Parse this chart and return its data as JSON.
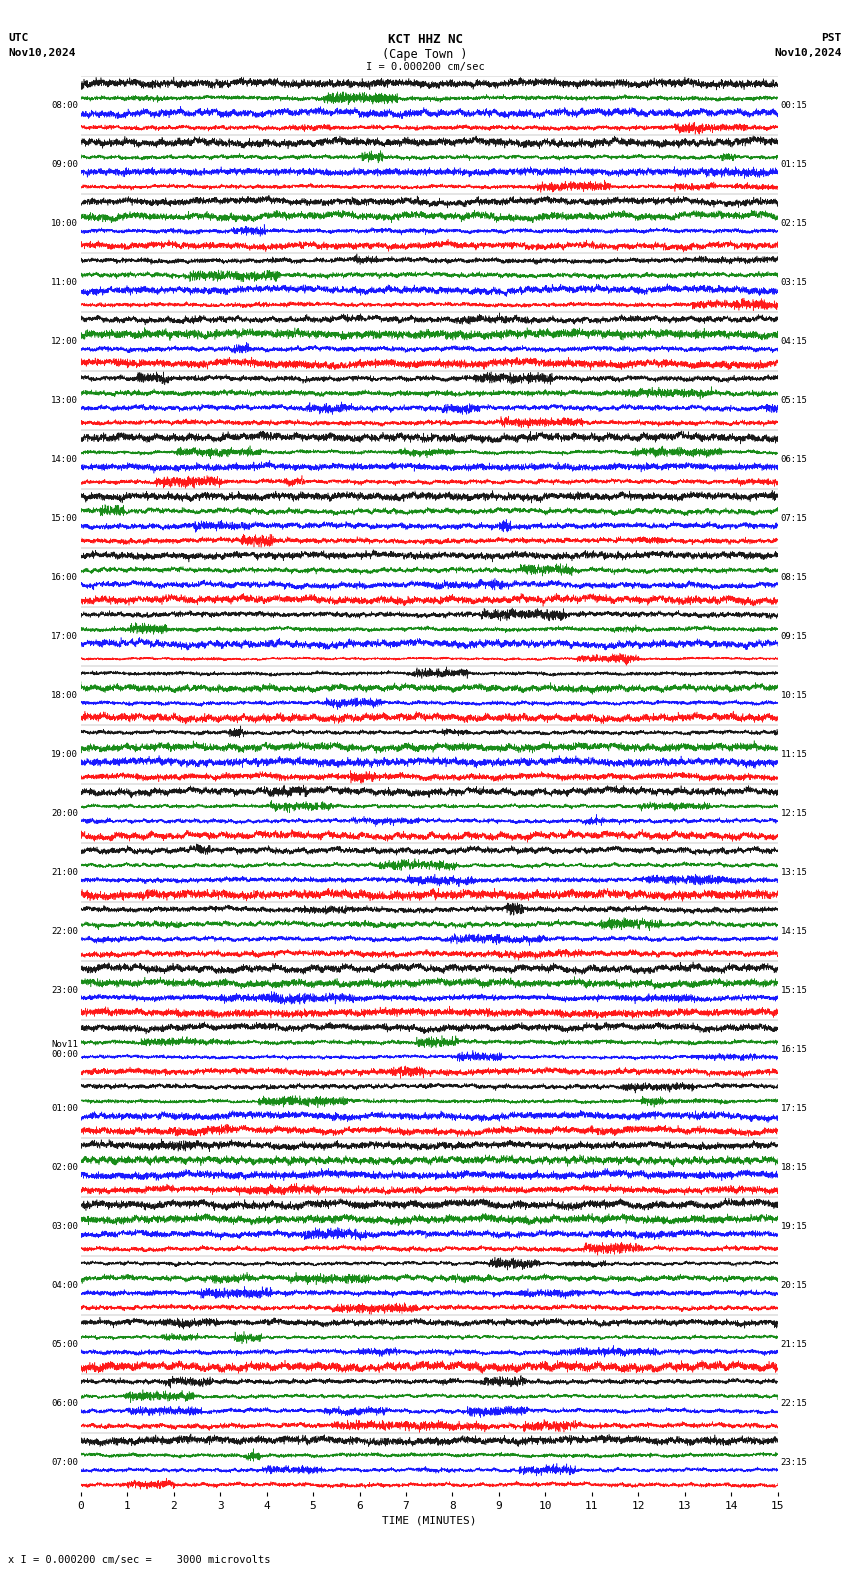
{
  "title_line1": "KCT HHZ NC",
  "title_line2": "(Cape Town )",
  "scale_label": "I = 0.000200 cm/sec",
  "left_label_top": "UTC",
  "left_label_date": "Nov10,2024",
  "right_label_top": "PST",
  "right_label_date": "Nov10,2024",
  "bottom_label": "TIME (MINUTES)",
  "bottom_note": "x I = 0.000200 cm/sec =    3000 microvolts",
  "utc_times": [
    "08:00",
    "09:00",
    "10:00",
    "11:00",
    "12:00",
    "13:00",
    "14:00",
    "15:00",
    "16:00",
    "17:00",
    "18:00",
    "19:00",
    "20:00",
    "21:00",
    "22:00",
    "23:00",
    "Nov11\n00:00",
    "01:00",
    "02:00",
    "03:00",
    "04:00",
    "05:00",
    "06:00",
    "07:00"
  ],
  "pst_times": [
    "00:15",
    "01:15",
    "02:15",
    "03:15",
    "04:15",
    "05:15",
    "06:15",
    "07:15",
    "08:15",
    "09:15",
    "10:15",
    "11:15",
    "12:15",
    "13:15",
    "14:15",
    "15:15",
    "16:15",
    "17:15",
    "18:15",
    "19:15",
    "20:15",
    "21:15",
    "22:15",
    "23:15"
  ],
  "n_rows": 24,
  "x_ticks": [
    0,
    1,
    2,
    3,
    4,
    5,
    6,
    7,
    8,
    9,
    10,
    11,
    12,
    13,
    14,
    15
  ],
  "colors": [
    "red",
    "blue",
    "green",
    "black"
  ],
  "bg_color": "white",
  "fig_width": 8.5,
  "fig_height": 15.84,
  "dpi": 100,
  "seed": 42,
  "n_subtraces": 4,
  "amplitude_scale": 0.45,
  "n_points": 6000,
  "linewidth": 0.4
}
